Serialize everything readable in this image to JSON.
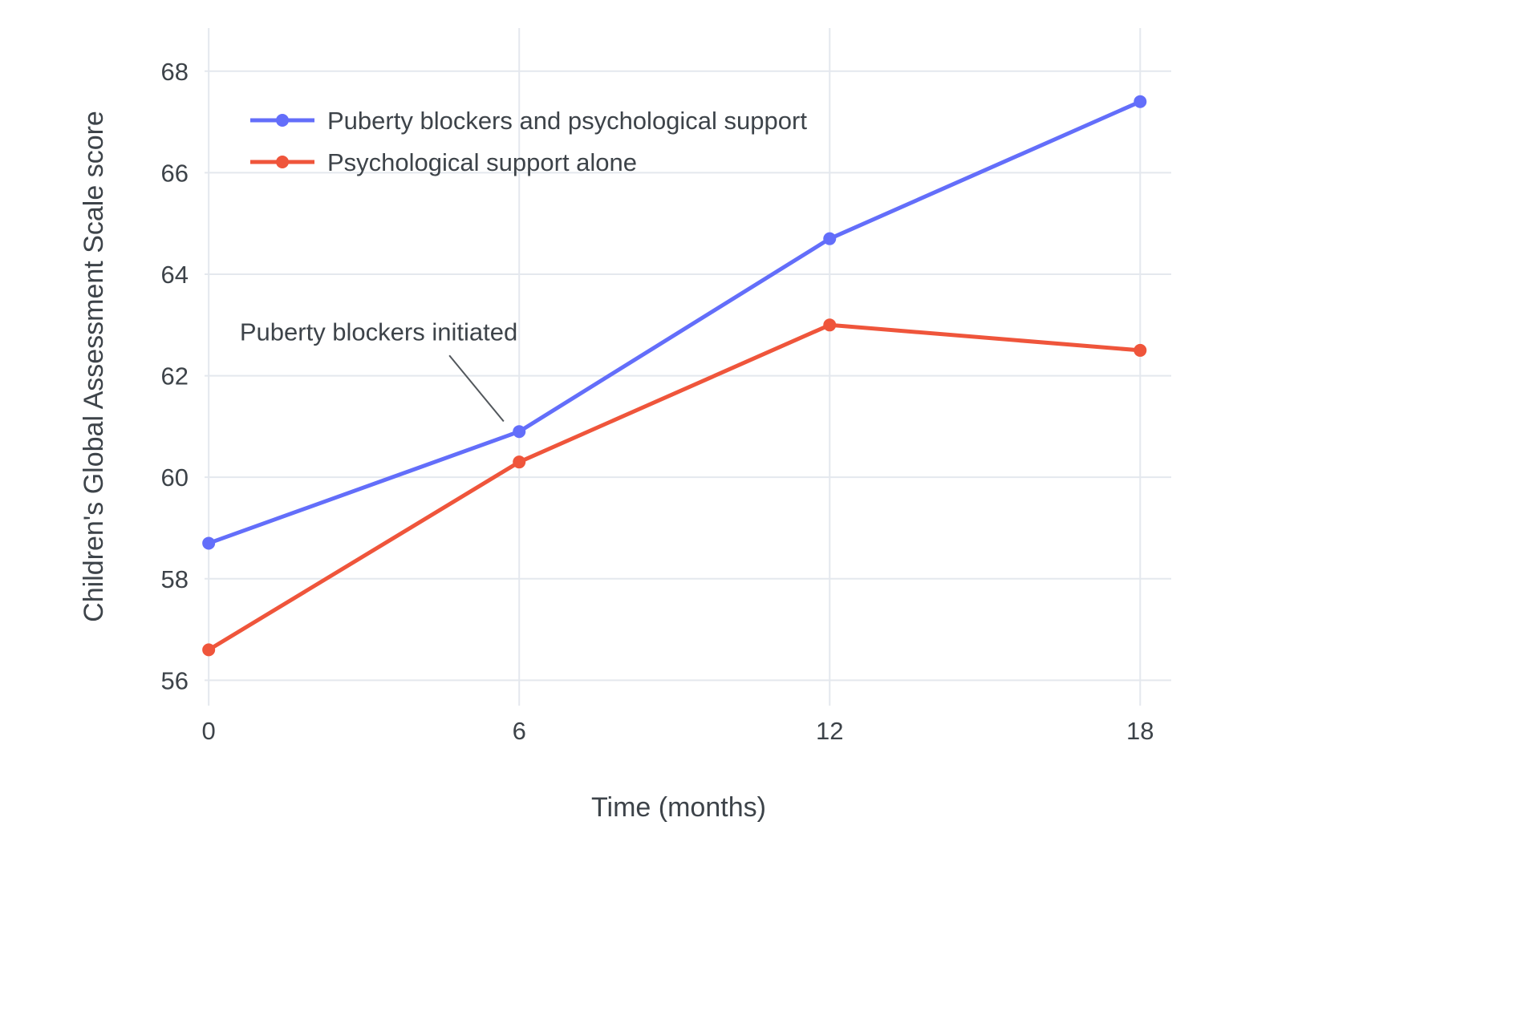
{
  "chart_data": {
    "type": "line",
    "title": "",
    "xlabel": "Time (months)",
    "ylabel": "Children's Global Assessment Scale score",
    "x": [
      0,
      6,
      12,
      18
    ],
    "xticks": [
      0,
      6,
      12,
      18
    ],
    "yticks": [
      56,
      58,
      60,
      62,
      64,
      66,
      68
    ],
    "xlim": [
      -0.08,
      18.6
    ],
    "ylim": [
      55.5,
      68.85
    ],
    "grid": true,
    "legend_position": "top-left-inside",
    "series": [
      {
        "name": "Puberty blockers and psychological support",
        "color": "#636EFA",
        "values": [
          58.7,
          60.9,
          64.7,
          67.4
        ]
      },
      {
        "name": "Psychological support alone",
        "color": "#EF553B",
        "values": [
          56.6,
          60.3,
          63.0,
          62.5
        ]
      }
    ],
    "annotation": {
      "text": "Puberty blockers initiated",
      "target": {
        "x": 6,
        "y": 60.9
      },
      "text_pos": {
        "x": 0.6,
        "y": 62.7
      },
      "leader": {
        "x1": 4.65,
        "y1": 62.4,
        "x2": 5.7,
        "y2": 61.1
      }
    }
  },
  "colors": {
    "background": "#FFFFFF",
    "grid": "#E4E8EE",
    "text": "#3D4349",
    "annotation_line": "#52575C"
  }
}
